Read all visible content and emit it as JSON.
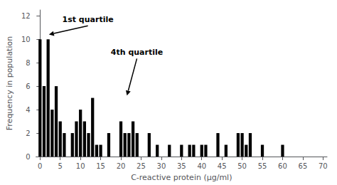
{
  "chart_data": {
    "type": "bar",
    "xlabel": "C-reactive protein (μg/ml)",
    "ylabel": "Frequency in population",
    "x": [
      0,
      1,
      2,
      3,
      4,
      5,
      6,
      7,
      8,
      9,
      10,
      11,
      12,
      13,
      14,
      15,
      16,
      17,
      18,
      19,
      20,
      21,
      22,
      23,
      24,
      25,
      26,
      27,
      28,
      29,
      30,
      31,
      32,
      33,
      34,
      35,
      36,
      37,
      38,
      39,
      40,
      41,
      42,
      43,
      44,
      45,
      46,
      47,
      48,
      49,
      50,
      51,
      52,
      53,
      54,
      55,
      56,
      57,
      58,
      59,
      60,
      61,
      62,
      63,
      64,
      65,
      66,
      67,
      68,
      69,
      70
    ],
    "values": [
      10,
      6,
      10,
      4,
      6,
      3,
      2,
      0,
      2,
      3,
      4,
      3,
      2,
      5,
      1,
      1,
      0,
      2,
      0,
      0,
      3,
      2,
      2,
      3,
      2,
      0,
      0,
      2,
      0,
      1,
      0,
      0,
      1,
      0,
      0,
      1,
      0,
      1,
      1,
      0,
      1,
      1,
      0,
      0,
      2,
      0,
      1,
      0,
      0,
      2,
      2,
      1,
      2,
      0,
      0,
      1,
      0,
      0,
      0,
      0,
      1,
      0,
      0,
      0,
      0,
      0,
      0,
      0,
      0,
      0,
      0
    ],
    "color": "#000000",
    "xlim": [
      -1,
      71
    ],
    "ylim": [
      0,
      12.5
    ],
    "xticks": [
      0,
      5,
      10,
      15,
      20,
      25,
      30,
      35,
      40,
      45,
      50,
      55,
      60,
      65,
      70
    ],
    "yticks": [
      0,
      2,
      4,
      6,
      8,
      10,
      12
    ],
    "grid": false,
    "annotations": [
      {
        "text": "1st quartile",
        "xy": [
          2.2,
          10.4
        ],
        "xytext": [
          5.5,
          12.0
        ]
      },
      {
        "text": "4th quartile",
        "xy": [
          21.5,
          5.2
        ],
        "xytext": [
          17.5,
          9.2
        ]
      }
    ]
  }
}
